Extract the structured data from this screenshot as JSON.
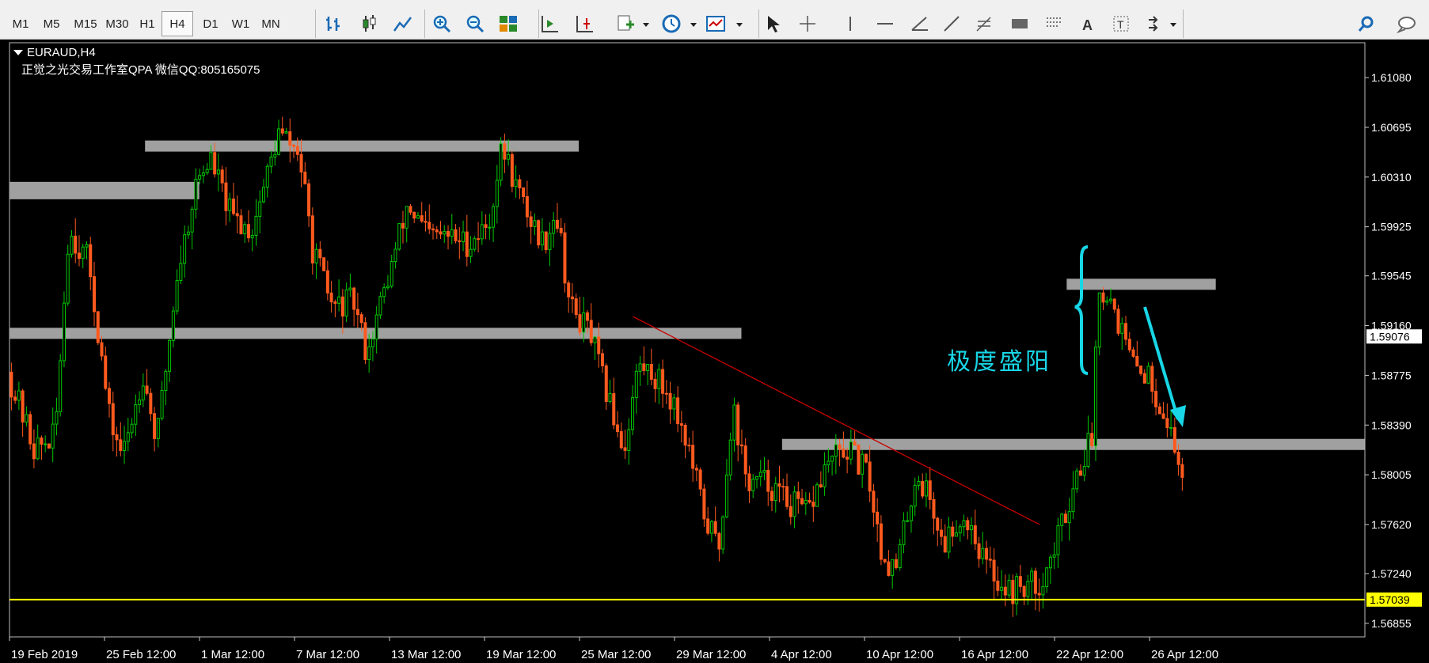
{
  "toolbar": {
    "timeframes": [
      "M1",
      "M5",
      "M15",
      "M30",
      "H1",
      "H4",
      "D1",
      "W1",
      "MN"
    ],
    "active_timeframe": "H4",
    "icons": [
      "bar-chart-icon",
      "candlestick-icon",
      "line-chart-icon",
      "zoom-in-icon",
      "zoom-out-icon",
      "tile-windows-icon",
      "autoscroll-icon",
      "chart-shift-icon",
      "new-indicator-icon",
      "periods-clock-icon",
      "templates-icon",
      "cursor-icon",
      "crosshair-icon",
      "vertical-line-icon",
      "horizontal-line-icon",
      "andrews-pitchfork-icon",
      "trendline-icon",
      "fibonacci-icon",
      "rectangle-icon",
      "fibo-fan-icon",
      "text-icon",
      "text-label-icon",
      "arrows-icon",
      "search-icon",
      "chat-icon"
    ]
  },
  "chart": {
    "symbol": "EURAUD,H4",
    "watermark": "正觉之光交易工作室QPA 微信QQ:805165075",
    "annotation": "极度盛阳",
    "current_price_label": "1.59076",
    "yellow_line_label": "1.57039",
    "colors": {
      "background": "#000000",
      "bull": "#00c800",
      "bear": "#ff5a1e",
      "zone": "#a0a0a0",
      "trendline": "#c80000",
      "support": "#ffff00",
      "annotation": "#18d6e6"
    }
  },
  "chart_data": {
    "type": "candlestick",
    "symbol": "EURAUD",
    "timeframe": "H4",
    "y_ticks": [
      "1.61080",
      "1.60695",
      "1.60310",
      "1.59925",
      "1.59545",
      "1.59160",
      "1.58775",
      "1.58390",
      "1.58005",
      "1.57620",
      "1.57240",
      "1.56855"
    ],
    "x_ticks": [
      "19 Feb 2019",
      "25 Feb 12:00",
      "1 Mar 12:00",
      "7 Mar 12:00",
      "13 Mar 12:00",
      "19 Mar 12:00",
      "25 Mar 12:00",
      "29 Mar 12:00",
      "4 Apr 12:00",
      "10 Apr 12:00",
      "16 Apr 12:00",
      "22 Apr 12:00",
      "26 Apr 12:00"
    ],
    "ylim": [
      1.5675,
      1.6135
    ],
    "current_price": 1.59076,
    "horizontal_line": 1.57039,
    "zones": [
      {
        "x_from": 0.0,
        "x_to": 0.14,
        "price": 1.6023
      },
      {
        "x_from": 0.1,
        "x_to": 0.42,
        "price": 1.6055
      },
      {
        "x_from": 0.0,
        "x_to": 0.54,
        "price": 1.591
      },
      {
        "x_from": 0.57,
        "x_to": 1.03,
        "price": 1.5824
      },
      {
        "x_from": 0.78,
        "x_to": 0.89,
        "price": 1.5948
      }
    ],
    "trendline": {
      "x_from": 0.46,
      "price_from": 1.5923,
      "x_to": 0.76,
      "price_to": 1.5762
    },
    "path": [
      [
        0.0,
        1.588
      ],
      [
        0.02,
        1.582
      ],
      [
        0.035,
        1.583
      ],
      [
        0.045,
        1.599
      ],
      [
        0.06,
        1.5965
      ],
      [
        0.075,
        1.5845
      ],
      [
        0.085,
        1.5815
      ],
      [
        0.1,
        1.588
      ],
      [
        0.11,
        1.5825
      ],
      [
        0.125,
        1.5955
      ],
      [
        0.14,
        1.603
      ],
      [
        0.15,
        1.6045
      ],
      [
        0.165,
        1.6
      ],
      [
        0.18,
        1.599
      ],
      [
        0.2,
        1.6065
      ],
      [
        0.215,
        1.605
      ],
      [
        0.225,
        1.5975
      ],
      [
        0.24,
        1.593
      ],
      [
        0.255,
        1.5935
      ],
      [
        0.265,
        1.5895
      ],
      [
        0.28,
        1.595
      ],
      [
        0.295,
        1.601
      ],
      [
        0.31,
        1.5985
      ],
      [
        0.325,
        1.5985
      ],
      [
        0.34,
        1.598
      ],
      [
        0.355,
        1.5995
      ],
      [
        0.365,
        1.6055
      ],
      [
        0.38,
        1.601
      ],
      [
        0.395,
        1.598
      ],
      [
        0.405,
        1.6005
      ],
      [
        0.415,
        1.593
      ],
      [
        0.43,
        1.591
      ],
      [
        0.44,
        1.587
      ],
      [
        0.455,
        1.582
      ],
      [
        0.465,
        1.5885
      ],
      [
        0.475,
        1.588
      ],
      [
        0.49,
        1.586
      ],
      [
        0.5,
        1.583
      ],
      [
        0.515,
        1.5765
      ],
      [
        0.525,
        1.5745
      ],
      [
        0.535,
        1.5855
      ],
      [
        0.545,
        1.5795
      ],
      [
        0.56,
        1.5795
      ],
      [
        0.575,
        1.578
      ],
      [
        0.59,
        1.577
      ],
      [
        0.605,
        1.581
      ],
      [
        0.62,
        1.582
      ],
      [
        0.635,
        1.58
      ],
      [
        0.645,
        1.574
      ],
      [
        0.655,
        1.5725
      ],
      [
        0.67,
        1.58
      ],
      [
        0.68,
        1.5785
      ],
      [
        0.69,
        1.5745
      ],
      [
        0.7,
        1.5765
      ],
      [
        0.71,
        1.5765
      ],
      [
        0.72,
        1.5735
      ],
      [
        0.73,
        1.572
      ],
      [
        0.74,
        1.571
      ],
      [
        0.75,
        1.5715
      ],
      [
        0.76,
        1.5715
      ],
      [
        0.77,
        1.5735
      ],
      [
        0.78,
        1.577
      ],
      [
        0.79,
        1.5805
      ],
      [
        0.8,
        1.583
      ],
      [
        0.805,
        1.595
      ],
      [
        0.815,
        1.5935
      ],
      [
        0.83,
        1.5885
      ],
      [
        0.84,
        1.588
      ],
      [
        0.855,
        1.5845
      ],
      [
        0.865,
        1.5805
      ]
    ]
  }
}
